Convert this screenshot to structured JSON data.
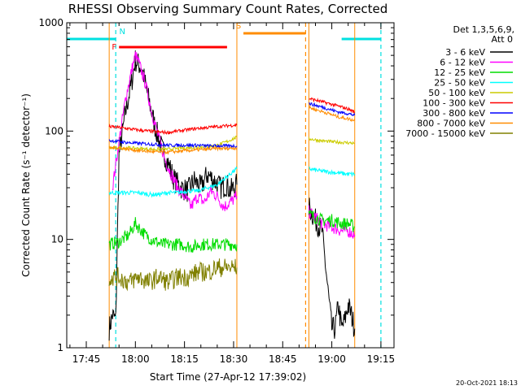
{
  "chart_data": {
    "type": "line",
    "title": "RHESSI Observing Summary Count Rates, Corrected",
    "xlabel": "Start Time (27-Apr-12 17:39:02)",
    "ylabel": "Corrected Count Rate (s⁻¹ detector⁻¹)",
    "yscale": "log",
    "ylim": [
      1,
      1000
    ],
    "xlim": [
      "17:39:02",
      "19:19:00"
    ],
    "x_ticks": [
      "17:45",
      "18:00",
      "18:15",
      "18:30",
      "18:45",
      "19:00",
      "19:15"
    ],
    "y_ticks": [
      "1",
      "10",
      "100",
      "1000"
    ],
    "legend_title": "Det 1,3,5,6,9,",
    "legend_subtitle": "Att 0",
    "legend_position": "right",
    "footer": "20-Oct-2021 18:13",
    "markers": [
      {
        "label": "N",
        "color": "#00e0e0",
        "bars": [
          [
            "17:39",
            "17:54"
          ],
          [
            "19:03",
            "19:15"
          ]
        ],
        "lines": [
          "17:54",
          "19:15"
        ]
      },
      {
        "label": "F",
        "color": "#ff0000",
        "bars": [
          [
            "17:55",
            "18:28"
          ]
        ],
        "lines": []
      },
      {
        "label": "S",
        "color": "#ff8c00",
        "bars": [
          [
            "18:33",
            "18:52"
          ]
        ],
        "lines": [
          "18:52"
        ]
      }
    ],
    "segments": [
      [
        "17:52",
        "18:31"
      ],
      [
        "18:53",
        "19:07"
      ]
    ],
    "series": [
      {
        "name": "3 - 6 keV",
        "color": "#000000",
        "points": [
          [
            "17:52",
            1.5
          ],
          [
            "17:53",
            2.0
          ],
          [
            "17:54",
            1.8
          ],
          [
            "17:55",
            60
          ],
          [
            "17:57",
            150
          ],
          [
            "17:59",
            300
          ],
          [
            "18:00",
            450
          ],
          [
            "18:02",
            380
          ],
          [
            "18:04",
            200
          ],
          [
            "18:06",
            110
          ],
          [
            "18:08",
            70
          ],
          [
            "18:10",
            50
          ],
          [
            "18:12",
            35
          ],
          [
            "18:14",
            30
          ],
          [
            "18:16",
            28
          ],
          [
            "18:18",
            35
          ],
          [
            "18:20",
            30
          ],
          [
            "18:22",
            40
          ],
          [
            "18:24",
            35
          ],
          [
            "18:26",
            30
          ],
          [
            "18:28",
            32
          ],
          [
            "18:29",
            28
          ],
          [
            "18:30",
            30
          ],
          [
            "18:31",
            32
          ],
          [
            "18:53",
            20
          ],
          [
            "18:55",
            15
          ],
          [
            "18:57",
            12
          ],
          [
            "18:59",
            3
          ],
          [
            "19:00",
            1.5
          ],
          [
            "19:01",
            1.5
          ],
          [
            "19:02",
            2.5
          ],
          [
            "19:03",
            1.5
          ],
          [
            "19:04",
            1.8
          ],
          [
            "19:05",
            2.5
          ],
          [
            "19:06",
            2.0
          ],
          [
            "19:07",
            1.5
          ]
        ]
      },
      {
        "name": "6 - 12 keV",
        "color": "#ff00ff",
        "points": [
          [
            "17:53",
            30
          ],
          [
            "17:55",
            80
          ],
          [
            "17:57",
            200
          ],
          [
            "17:59",
            380
          ],
          [
            "18:00",
            500
          ],
          [
            "18:01",
            430
          ],
          [
            "18:03",
            280
          ],
          [
            "18:05",
            150
          ],
          [
            "18:07",
            90
          ],
          [
            "18:09",
            55
          ],
          [
            "18:11",
            40
          ],
          [
            "18:13",
            30
          ],
          [
            "18:15",
            25
          ],
          [
            "18:17",
            20
          ],
          [
            "18:19",
            25
          ],
          [
            "18:21",
            22
          ],
          [
            "18:23",
            28
          ],
          [
            "18:25",
            25
          ],
          [
            "18:27",
            20
          ],
          [
            "18:29",
            22
          ],
          [
            "18:31",
            25
          ],
          [
            "18:53",
            18
          ],
          [
            "18:55",
            16
          ],
          [
            "18:57",
            14
          ],
          [
            "19:00",
            13
          ],
          [
            "19:03",
            12
          ],
          [
            "19:05",
            12
          ],
          [
            "19:07",
            11
          ]
        ]
      },
      {
        "name": "12 - 25 keV",
        "color": "#00dd00",
        "points": [
          [
            "17:52",
            9
          ],
          [
            "17:55",
            9.5
          ],
          [
            "17:58",
            11
          ],
          [
            "18:00",
            14
          ],
          [
            "18:03",
            11
          ],
          [
            "18:05",
            10
          ],
          [
            "18:08",
            9
          ],
          [
            "18:11",
            9
          ],
          [
            "18:14",
            9
          ],
          [
            "18:17",
            8.5
          ],
          [
            "18:20",
            9
          ],
          [
            "18:23",
            9
          ],
          [
            "18:26",
            9
          ],
          [
            "18:29",
            9
          ],
          [
            "18:31",
            9
          ],
          [
            "18:53",
            17
          ],
          [
            "18:55",
            16
          ],
          [
            "18:57",
            15
          ],
          [
            "19:00",
            15
          ],
          [
            "19:03",
            14
          ],
          [
            "19:05",
            14
          ],
          [
            "19:07",
            13
          ]
        ]
      },
      {
        "name": "25 - 50 keV",
        "color": "#00ffff",
        "points": [
          [
            "17:52",
            27
          ],
          [
            "17:55",
            27
          ],
          [
            "17:58",
            27
          ],
          [
            "18:01",
            27
          ],
          [
            "18:04",
            26
          ],
          [
            "18:07",
            26
          ],
          [
            "18:10",
            27
          ],
          [
            "18:13",
            27
          ],
          [
            "18:16",
            28
          ],
          [
            "18:19",
            28
          ],
          [
            "18:22",
            30
          ],
          [
            "18:25",
            32
          ],
          [
            "18:28",
            38
          ],
          [
            "18:31",
            45
          ],
          [
            "18:53",
            45
          ],
          [
            "18:56",
            43
          ],
          [
            "18:59",
            42
          ],
          [
            "19:02",
            41
          ],
          [
            "19:05",
            40
          ],
          [
            "19:07",
            40
          ]
        ]
      },
      {
        "name": "50 - 100 keV",
        "color": "#cccc00",
        "points": [
          [
            "17:52",
            70
          ],
          [
            "17:55",
            70
          ],
          [
            "17:58",
            70
          ],
          [
            "18:01",
            69
          ],
          [
            "18:04",
            68
          ],
          [
            "18:07",
            68
          ],
          [
            "18:10",
            68
          ],
          [
            "18:13",
            69
          ],
          [
            "18:16",
            70
          ],
          [
            "18:19",
            71
          ],
          [
            "18:22",
            72
          ],
          [
            "18:25",
            74
          ],
          [
            "18:28",
            80
          ],
          [
            "18:31",
            88
          ],
          [
            "18:53",
            85
          ],
          [
            "18:56",
            82
          ],
          [
            "18:59",
            80
          ],
          [
            "19:02",
            79
          ],
          [
            "19:05",
            78
          ],
          [
            "19:07",
            77
          ]
        ]
      },
      {
        "name": "100 - 300 keV",
        "color": "#ff0000",
        "points": [
          [
            "17:52",
            110
          ],
          [
            "17:55",
            108
          ],
          [
            "17:58",
            105
          ],
          [
            "18:01",
            102
          ],
          [
            "18:04",
            100
          ],
          [
            "18:07",
            98
          ],
          [
            "18:10",
            97
          ],
          [
            "18:13",
            100
          ],
          [
            "18:16",
            103
          ],
          [
            "18:19",
            106
          ],
          [
            "18:22",
            108
          ],
          [
            "18:25",
            110
          ],
          [
            "18:28",
            112
          ],
          [
            "18:31",
            114
          ],
          [
            "18:53",
            200
          ],
          [
            "18:56",
            190
          ],
          [
            "18:59",
            180
          ],
          [
            "19:02",
            170
          ],
          [
            "19:05",
            160
          ],
          [
            "19:07",
            150
          ]
        ]
      },
      {
        "name": "300 - 800 keV",
        "color": "#0000ff",
        "points": [
          [
            "17:52",
            82
          ],
          [
            "17:55",
            80
          ],
          [
            "17:58",
            78
          ],
          [
            "18:01",
            77
          ],
          [
            "18:04",
            76
          ],
          [
            "18:07",
            75
          ],
          [
            "18:10",
            74
          ],
          [
            "18:13",
            74
          ],
          [
            "18:16",
            74
          ],
          [
            "18:19",
            74
          ],
          [
            "18:22",
            73
          ],
          [
            "18:25",
            73
          ],
          [
            "18:28",
            73
          ],
          [
            "18:31",
            73
          ],
          [
            "18:53",
            180
          ],
          [
            "18:56",
            170
          ],
          [
            "18:59",
            160
          ],
          [
            "19:02",
            150
          ],
          [
            "19:05",
            145
          ],
          [
            "19:07",
            140
          ]
        ]
      },
      {
        "name": "800 - 7000 keV",
        "color": "#ff8c00",
        "points": [
          [
            "17:52",
            70
          ],
          [
            "17:55",
            70
          ],
          [
            "17:58",
            68
          ],
          [
            "18:01",
            66
          ],
          [
            "18:04",
            65
          ],
          [
            "18:07",
            64
          ],
          [
            "18:10",
            64
          ],
          [
            "18:13",
            65
          ],
          [
            "18:16",
            66
          ],
          [
            "18:19",
            67
          ],
          [
            "18:22",
            68
          ],
          [
            "18:25",
            69
          ],
          [
            "18:28",
            69
          ],
          [
            "18:31",
            70
          ],
          [
            "18:53",
            165
          ],
          [
            "18:56",
            155
          ],
          [
            "18:59",
            145
          ],
          [
            "19:02",
            135
          ],
          [
            "19:05",
            130
          ],
          [
            "19:07",
            125
          ]
        ]
      },
      {
        "name": "7000 - 15000 keV",
        "color": "#808000",
        "points": [
          [
            "17:52",
            4.5
          ],
          [
            "17:55",
            4.5
          ],
          [
            "17:58",
            4.0
          ],
          [
            "18:01",
            4.5
          ],
          [
            "18:04",
            4.0
          ],
          [
            "18:07",
            4.5
          ],
          [
            "18:10",
            4.0
          ],
          [
            "18:13",
            4.5
          ],
          [
            "18:16",
            4.5
          ],
          [
            "18:19",
            5.0
          ],
          [
            "18:22",
            5.0
          ],
          [
            "18:25",
            5.5
          ],
          [
            "18:28",
            5.5
          ],
          [
            "18:31",
            5.5
          ]
        ]
      }
    ]
  }
}
